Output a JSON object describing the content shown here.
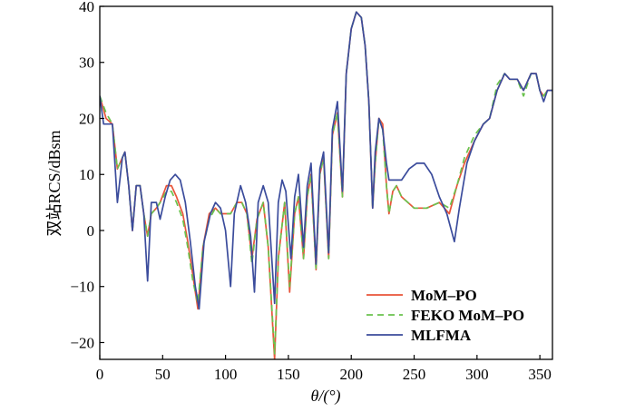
{
  "chart_data": {
    "type": "line",
    "xlabel": "θ/(°)",
    "ylabel": "双站RCS/dBsm",
    "xlim": [
      0,
      360
    ],
    "ylim": [
      -23,
      40
    ],
    "xticks": [
      0,
      50,
      100,
      150,
      200,
      250,
      300,
      350
    ],
    "yticks": [
      -20,
      -10,
      0,
      10,
      20,
      30,
      40
    ],
    "grid": false,
    "legend_position": "bottom-right",
    "series": [
      {
        "name": "MoM–PO",
        "color": "#e8553a",
        "dash": "solid",
        "points": [
          [
            0,
            24
          ],
          [
            5,
            20
          ],
          [
            10,
            19
          ],
          [
            14,
            11
          ],
          [
            18,
            13
          ],
          [
            20,
            14
          ],
          [
            23,
            8
          ],
          [
            26,
            0
          ],
          [
            29,
            8
          ],
          [
            32,
            8
          ],
          [
            35,
            3
          ],
          [
            38,
            -1
          ],
          [
            41,
            3
          ],
          [
            45,
            4
          ],
          [
            48,
            5
          ],
          [
            53,
            8
          ],
          [
            57,
            8
          ],
          [
            61,
            6
          ],
          [
            66,
            3
          ],
          [
            70,
            -2
          ],
          [
            74,
            -8
          ],
          [
            78,
            -14
          ],
          [
            82,
            -3
          ],
          [
            87,
            3
          ],
          [
            92,
            4
          ],
          [
            96,
            3
          ],
          [
            100,
            3
          ],
          [
            104,
            3
          ],
          [
            109,
            5
          ],
          [
            113,
            5
          ],
          [
            117,
            3
          ],
          [
            121,
            -5
          ],
          [
            125,
            2
          ],
          [
            130,
            5
          ],
          [
            134,
            -3
          ],
          [
            139,
            -23
          ],
          [
            142,
            -5
          ],
          [
            147,
            5
          ],
          [
            151,
            -11
          ],
          [
            155,
            3
          ],
          [
            158,
            6
          ],
          [
            162,
            -5
          ],
          [
            165,
            6
          ],
          [
            168,
            10
          ],
          [
            172,
            -7
          ],
          [
            175,
            10
          ],
          [
            178,
            13
          ],
          [
            182,
            -5
          ],
          [
            185,
            17
          ],
          [
            189,
            21
          ],
          [
            193,
            6
          ],
          [
            196,
            28
          ],
          [
            200,
            36
          ],
          [
            204,
            39
          ],
          [
            208,
            38
          ],
          [
            211,
            33
          ],
          [
            214,
            23
          ],
          [
            217,
            4
          ],
          [
            219,
            12
          ],
          [
            222,
            20
          ],
          [
            225,
            19
          ],
          [
            228,
            8
          ],
          [
            230,
            3
          ],
          [
            233,
            7
          ],
          [
            236,
            8
          ],
          [
            240,
            6
          ],
          [
            250,
            4
          ],
          [
            260,
            4
          ],
          [
            270,
            5
          ],
          [
            278,
            3
          ],
          [
            284,
            8
          ],
          [
            290,
            12
          ],
          [
            298,
            16
          ],
          [
            305,
            19
          ],
          [
            310,
            20
          ],
          [
            316,
            25
          ],
          [
            322,
            28
          ],
          [
            326,
            27
          ],
          [
            332,
            27
          ],
          [
            337,
            25
          ],
          [
            343,
            28
          ],
          [
            347,
            28
          ],
          [
            350,
            25
          ],
          [
            353,
            24
          ],
          [
            356,
            25
          ],
          [
            360,
            25
          ]
        ]
      },
      {
        "name": "FEKO MoM–PO",
        "color": "#6bc24e",
        "dash": "dashed",
        "points": [
          [
            0,
            24
          ],
          [
            5,
            21
          ],
          [
            10,
            19
          ],
          [
            14,
            11
          ],
          [
            18,
            13
          ],
          [
            20,
            14
          ],
          [
            23,
            8
          ],
          [
            26,
            0
          ],
          [
            29,
            8
          ],
          [
            32,
            8
          ],
          [
            35,
            3
          ],
          [
            38,
            -1
          ],
          [
            41,
            3
          ],
          [
            45,
            4
          ],
          [
            48,
            5
          ],
          [
            53,
            7
          ],
          [
            57,
            7
          ],
          [
            61,
            5
          ],
          [
            66,
            2
          ],
          [
            70,
            -3
          ],
          [
            74,
            -9
          ],
          [
            78,
            -13
          ],
          [
            82,
            -3
          ],
          [
            87,
            2
          ],
          [
            92,
            4
          ],
          [
            96,
            3
          ],
          [
            100,
            3
          ],
          [
            104,
            3
          ],
          [
            109,
            5
          ],
          [
            113,
            5
          ],
          [
            117,
            3
          ],
          [
            121,
            -6
          ],
          [
            125,
            2
          ],
          [
            130,
            5
          ],
          [
            134,
            -3
          ],
          [
            139,
            -22
          ],
          [
            142,
            -5
          ],
          [
            147,
            5
          ],
          [
            151,
            -10
          ],
          [
            155,
            3
          ],
          [
            158,
            6
          ],
          [
            162,
            -5
          ],
          [
            165,
            6
          ],
          [
            168,
            10
          ],
          [
            172,
            -7
          ],
          [
            175,
            10
          ],
          [
            178,
            13
          ],
          [
            182,
            -5
          ],
          [
            185,
            17
          ],
          [
            189,
            21
          ],
          [
            193,
            6
          ],
          [
            196,
            28
          ],
          [
            200,
            36
          ],
          [
            204,
            39
          ],
          [
            208,
            38
          ],
          [
            211,
            33
          ],
          [
            214,
            23
          ],
          [
            217,
            4
          ],
          [
            219,
            12
          ],
          [
            222,
            20
          ],
          [
            225,
            18
          ],
          [
            228,
            8
          ],
          [
            230,
            3
          ],
          [
            233,
            7
          ],
          [
            236,
            8
          ],
          [
            240,
            6
          ],
          [
            250,
            4
          ],
          [
            260,
            4
          ],
          [
            270,
            5
          ],
          [
            278,
            4
          ],
          [
            284,
            8
          ],
          [
            290,
            13
          ],
          [
            298,
            17
          ],
          [
            305,
            19
          ],
          [
            310,
            20
          ],
          [
            316,
            26
          ],
          [
            322,
            28
          ],
          [
            326,
            27
          ],
          [
            332,
            27
          ],
          [
            337,
            24
          ],
          [
            343,
            28
          ],
          [
            347,
            28
          ],
          [
            350,
            25
          ],
          [
            353,
            24
          ],
          [
            356,
            25
          ],
          [
            360,
            25
          ]
        ]
      },
      {
        "name": "MLFMA",
        "color": "#3b4c9c",
        "dash": "solid",
        "points": [
          [
            0,
            24
          ],
          [
            3,
            19
          ],
          [
            7,
            19
          ],
          [
            10,
            19
          ],
          [
            14,
            5
          ],
          [
            18,
            13
          ],
          [
            20,
            14
          ],
          [
            23,
            8
          ],
          [
            26,
            0
          ],
          [
            29,
            8
          ],
          [
            32,
            8
          ],
          [
            35,
            3
          ],
          [
            38,
            -9
          ],
          [
            41,
            5
          ],
          [
            45,
            5
          ],
          [
            48,
            2
          ],
          [
            52,
            6
          ],
          [
            56,
            9
          ],
          [
            60,
            10
          ],
          [
            64,
            9
          ],
          [
            68,
            5
          ],
          [
            72,
            -2
          ],
          [
            76,
            -10
          ],
          [
            79,
            -14
          ],
          [
            83,
            -2
          ],
          [
            88,
            3
          ],
          [
            92,
            5
          ],
          [
            96,
            4
          ],
          [
            100,
            0
          ],
          [
            104,
            -10
          ],
          [
            107,
            3
          ],
          [
            112,
            8
          ],
          [
            116,
            5
          ],
          [
            120,
            -1
          ],
          [
            123,
            -11
          ],
          [
            126,
            5
          ],
          [
            130,
            8
          ],
          [
            134,
            5
          ],
          [
            139,
            -13
          ],
          [
            142,
            5
          ],
          [
            145,
            9
          ],
          [
            148,
            7
          ],
          [
            152,
            -5
          ],
          [
            155,
            6
          ],
          [
            158,
            10
          ],
          [
            162,
            -3
          ],
          [
            165,
            8
          ],
          [
            168,
            12
          ],
          [
            172,
            -6
          ],
          [
            175,
            11
          ],
          [
            178,
            14
          ],
          [
            182,
            -4
          ],
          [
            185,
            18
          ],
          [
            189,
            23
          ],
          [
            193,
            7
          ],
          [
            196,
            28
          ],
          [
            200,
            36
          ],
          [
            204,
            39
          ],
          [
            208,
            38
          ],
          [
            211,
            33
          ],
          [
            214,
            23
          ],
          [
            217,
            4
          ],
          [
            219,
            14
          ],
          [
            222,
            20
          ],
          [
            225,
            18
          ],
          [
            228,
            12
          ],
          [
            230,
            9
          ],
          [
            234,
            9
          ],
          [
            240,
            9
          ],
          [
            246,
            11
          ],
          [
            252,
            12
          ],
          [
            258,
            12
          ],
          [
            264,
            10
          ],
          [
            270,
            6
          ],
          [
            276,
            3
          ],
          [
            282,
            -2
          ],
          [
            286,
            4
          ],
          [
            292,
            12
          ],
          [
            298,
            16
          ],
          [
            305,
            19
          ],
          [
            310,
            20
          ],
          [
            316,
            25
          ],
          [
            322,
            28
          ],
          [
            326,
            27
          ],
          [
            332,
            27
          ],
          [
            337,
            25
          ],
          [
            343,
            28
          ],
          [
            347,
            28
          ],
          [
            350,
            25
          ],
          [
            353,
            23
          ],
          [
            356,
            25
          ],
          [
            360,
            25
          ]
        ]
      }
    ]
  }
}
